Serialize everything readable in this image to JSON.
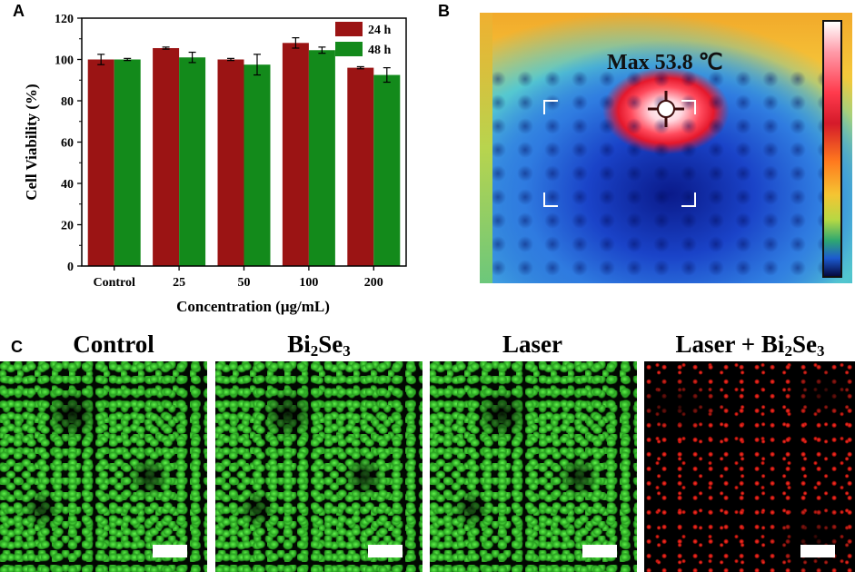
{
  "panels": {
    "a_label": "A",
    "b_label": "B",
    "c_label": "C"
  },
  "chart_data": {
    "type": "bar",
    "categories": [
      "Control",
      "25",
      "50",
      "100",
      "200"
    ],
    "series": [
      {
        "name": "24 h",
        "color": "#9b1414",
        "values": [
          100,
          105.5,
          100,
          108,
          96
        ],
        "errors": [
          2.5,
          0.5,
          0.5,
          2.5,
          0.5
        ]
      },
      {
        "name": "48 h",
        "color": "#138a1b",
        "values": [
          100,
          101,
          97.5,
          104.5,
          92.5
        ],
        "errors": [
          0.5,
          2.5,
          5,
          1.5,
          3.5
        ]
      }
    ],
    "title": "",
    "xlabel": "Concentration (μg/mL)",
    "ylabel": "Cell Viability (%)",
    "ylim": [
      0,
      120
    ],
    "yticks": [
      "0",
      "20",
      "40",
      "60",
      "80",
      "100",
      "120"
    ],
    "legend_position": "top-right"
  },
  "thermal": {
    "label": "Max 53.8 ℃",
    "colors": {
      "hot": "#e5182c",
      "cold": "#0a1a8a"
    }
  },
  "micrographs": [
    {
      "title_main": "Control",
      "title_sub": "",
      "title_after": "",
      "stain": "green"
    },
    {
      "title_main": "Bi",
      "title_sub": "2",
      "title_mid": "Se",
      "title_sub2": "3",
      "stain": "green"
    },
    {
      "title_main": "Laser",
      "title_sub": "",
      "title_after": "",
      "stain": "green"
    },
    {
      "title_main": "Laser + Bi",
      "title_sub": "2",
      "title_mid": "Se",
      "title_sub2": "3",
      "stain": "red"
    }
  ]
}
